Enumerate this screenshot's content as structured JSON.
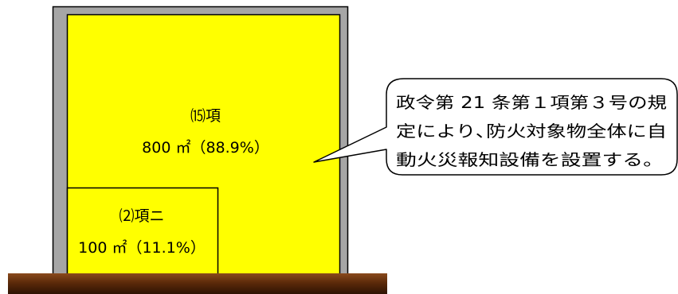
{
  "diagram": {
    "main_area": {
      "name": "⒂項",
      "area_text": "800 ㎡（88.9%）"
    },
    "sub_area": {
      "name": "⑵項ニ",
      "area_text": "100 ㎡（11.1%）"
    },
    "callout": {
      "lines": [
        "政令第 21 条第１項第３号の規",
        "定により､防火対象物全体に自",
        "動火災報知設備を設置する。"
      ]
    },
    "colors": {
      "building_fill": "#ffff00",
      "wall": "#a6a6a6",
      "ground": "#5c2a0a"
    }
  }
}
